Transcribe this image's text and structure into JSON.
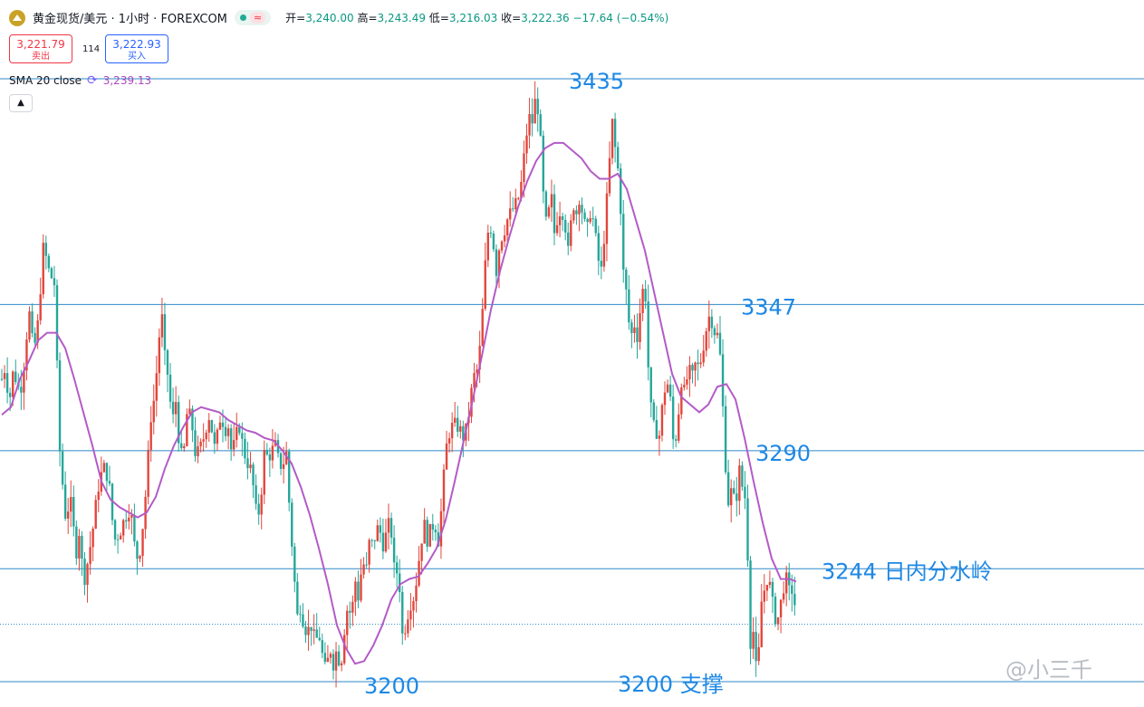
{
  "header": {
    "symbol_title": "黄金现货/美元 · 1小时 · FOREXCOM",
    "wave_badge": "≈",
    "ohlc": {
      "open_label": "开",
      "open": "3,240.00",
      "high_label": "高",
      "high": "3,243.49",
      "low_label": "低",
      "low": "3,216.03",
      "close_label": "收",
      "close": "3,222.36",
      "change": "−17.64 (−0.54%)"
    }
  },
  "trade": {
    "sell_price": "3,221.79",
    "sell_label": "卖出",
    "spread": "114",
    "buy_price": "3,222.93",
    "buy_label": "买入"
  },
  "indicator": {
    "label": "SMA 20 close",
    "value": "3,239.13"
  },
  "collapse_icon": "chevron-up-icon",
  "watermark": "@小三千",
  "colors": {
    "up": "#e2463c",
    "down": "#26a69a",
    "sma": "#b35bc7",
    "level_line": "#2f88c8",
    "level_text": "#1e88e5"
  },
  "chart_data": {
    "type": "candlestick",
    "timeframe": "1小时",
    "ylim": [
      3185,
      3445
    ],
    "levels": [
      {
        "value": 3435,
        "label": "3435"
      },
      {
        "value": 3347,
        "label": "3347"
      },
      {
        "value": 3290,
        "label": "3290"
      },
      {
        "value": 3244,
        "label": "3244 日内分水岭"
      },
      {
        "value": 3200,
        "label": "3200 支撑"
      }
    ],
    "extra_labels": [
      {
        "value": 3200,
        "label": "3200"
      }
    ],
    "current_price": 3222.36,
    "close_path": [
      [
        0,
        3318
      ],
      [
        4,
        3323
      ],
      [
        8,
        3308
      ],
      [
        12,
        3320
      ],
      [
        16,
        3318
      ],
      [
        20,
        3312
      ],
      [
        24,
        3322
      ],
      [
        30,
        3345
      ],
      [
        35,
        3328
      ],
      [
        40,
        3340
      ],
      [
        46,
        3370
      ],
      [
        52,
        3360
      ],
      [
        58,
        3355
      ],
      [
        64,
        3290
      ],
      [
        70,
        3265
      ],
      [
        76,
        3270
      ],
      [
        82,
        3250
      ],
      [
        86,
        3260
      ],
      [
        90,
        3238
      ],
      [
        95,
        3247
      ],
      [
        100,
        3258
      ],
      [
        106,
        3275
      ],
      [
        112,
        3284
      ],
      [
        118,
        3279
      ],
      [
        124,
        3255
      ],
      [
        130,
        3258
      ],
      [
        136,
        3264
      ],
      [
        142,
        3268
      ],
      [
        148,
        3248
      ],
      [
        152,
        3250
      ],
      [
        156,
        3262
      ],
      [
        160,
        3278
      ],
      [
        164,
        3302
      ],
      [
        168,
        3310
      ],
      [
        172,
        3325
      ],
      [
        176,
        3346
      ],
      [
        180,
        3326
      ],
      [
        184,
        3318
      ],
      [
        188,
        3300
      ],
      [
        192,
        3310
      ],
      [
        196,
        3292
      ],
      [
        200,
        3285
      ],
      [
        205,
        3307
      ],
      [
        210,
        3300
      ],
      [
        214,
        3288
      ],
      [
        218,
        3290
      ],
      [
        222,
        3294
      ],
      [
        226,
        3300
      ],
      [
        230,
        3305
      ],
      [
        234,
        3290
      ],
      [
        238,
        3296
      ],
      [
        242,
        3305
      ],
      [
        246,
        3298
      ],
      [
        250,
        3300
      ],
      [
        254,
        3288
      ],
      [
        258,
        3295
      ],
      [
        262,
        3300
      ],
      [
        266,
        3292
      ],
      [
        270,
        3286
      ],
      [
        274,
        3284
      ],
      [
        278,
        3275
      ],
      [
        282,
        3262
      ],
      [
        286,
        3272
      ],
      [
        290,
        3290
      ],
      [
        294,
        3287
      ],
      [
        298,
        3290
      ],
      [
        302,
        3292
      ],
      [
        306,
        3285
      ],
      [
        310,
        3284
      ],
      [
        314,
        3290
      ],
      [
        318,
        3265
      ],
      [
        322,
        3245
      ],
      [
        326,
        3225
      ],
      [
        330,
        3230
      ],
      [
        334,
        3221
      ],
      [
        338,
        3220
      ],
      [
        342,
        3222
      ],
      [
        346,
        3215
      ],
      [
        350,
        3219
      ],
      [
        354,
        3210
      ],
      [
        358,
        3203
      ],
      [
        362,
        3214
      ],
      [
        366,
        3207
      ],
      [
        370,
        3213
      ],
      [
        374,
        3205
      ],
      [
        378,
        3220
      ],
      [
        382,
        3230
      ],
      [
        386,
        3225
      ],
      [
        390,
        3240
      ],
      [
        394,
        3232
      ],
      [
        398,
        3248
      ],
      [
        402,
        3242
      ],
      [
        406,
        3255
      ],
      [
        410,
        3253
      ],
      [
        414,
        3260
      ],
      [
        418,
        3258
      ],
      [
        422,
        3252
      ],
      [
        426,
        3262
      ],
      [
        430,
        3258
      ],
      [
        434,
        3240
      ],
      [
        438,
        3245
      ],
      [
        442,
        3218
      ],
      [
        446,
        3222
      ],
      [
        450,
        3230
      ],
      [
        454,
        3232
      ],
      [
        458,
        3240
      ],
      [
        462,
        3252
      ],
      [
        466,
        3262
      ],
      [
        470,
        3255
      ],
      [
        474,
        3260
      ],
      [
        478,
        3262
      ],
      [
        482,
        3255
      ],
      [
        486,
        3270
      ],
      [
        490,
        3290
      ],
      [
        494,
        3297
      ],
      [
        498,
        3300
      ],
      [
        502,
        3300
      ],
      [
        506,
        3298
      ],
      [
        510,
        3295
      ],
      [
        514,
        3300
      ],
      [
        518,
        3312
      ],
      [
        522,
        3320
      ],
      [
        526,
        3322
      ],
      [
        530,
        3340
      ],
      [
        534,
        3364
      ],
      [
        538,
        3380
      ],
      [
        542,
        3373
      ],
      [
        546,
        3360
      ],
      [
        550,
        3372
      ],
      [
        554,
        3375
      ],
      [
        558,
        3380
      ],
      [
        562,
        3383
      ],
      [
        566,
        3385
      ],
      [
        570,
        3388
      ],
      [
        574,
        3395
      ],
      [
        578,
        3410
      ],
      [
        582,
        3420
      ],
      [
        586,
        3418
      ],
      [
        590,
        3430
      ],
      [
        594,
        3415
      ],
      [
        598,
        3388
      ],
      [
        602,
        3375
      ],
      [
        606,
        3392
      ],
      [
        610,
        3375
      ],
      [
        614,
        3382
      ],
      [
        618,
        3385
      ],
      [
        622,
        3378
      ],
      [
        626,
        3365
      ],
      [
        630,
        3388
      ],
      [
        634,
        3382
      ],
      [
        638,
        3390
      ],
      [
        642,
        3380
      ],
      [
        646,
        3375
      ],
      [
        650,
        3384
      ],
      [
        654,
        3378
      ],
      [
        658,
        3365
      ],
      [
        662,
        3360
      ],
      [
        666,
        3378
      ],
      [
        670,
        3398
      ],
      [
        674,
        3418
      ],
      [
        678,
        3405
      ],
      [
        682,
        3395
      ],
      [
        686,
        3360
      ],
      [
        690,
        3350
      ],
      [
        694,
        3333
      ],
      [
        698,
        3340
      ],
      [
        702,
        3334
      ],
      [
        706,
        3350
      ],
      [
        710,
        3356
      ],
      [
        714,
        3320
      ],
      [
        718,
        3300
      ],
      [
        722,
        3298
      ],
      [
        726,
        3296
      ],
      [
        730,
        3310
      ],
      [
        734,
        3318
      ],
      [
        738,
        3310
      ],
      [
        742,
        3290
      ],
      [
        746,
        3300
      ],
      [
        750,
        3318
      ],
      [
        754,
        3312
      ],
      [
        758,
        3322
      ],
      [
        762,
        3318
      ],
      [
        766,
        3324
      ],
      [
        770,
        3322
      ],
      [
        774,
        3330
      ],
      [
        778,
        3338
      ],
      [
        782,
        3344
      ],
      [
        786,
        3337
      ],
      [
        790,
        3335
      ],
      [
        794,
        3324
      ],
      [
        798,
        3290
      ],
      [
        802,
        3270
      ],
      [
        806,
        3275
      ],
      [
        810,
        3268
      ],
      [
        814,
        3283
      ],
      [
        818,
        3275
      ],
      [
        822,
        3270
      ],
      [
        826,
        3215
      ],
      [
        830,
        3220
      ],
      [
        834,
        3198
      ],
      [
        838,
        3230
      ],
      [
        842,
        3236
      ],
      [
        846,
        3242
      ],
      [
        850,
        3232
      ],
      [
        854,
        3225
      ],
      [
        858,
        3225
      ],
      [
        862,
        3236
      ],
      [
        866,
        3240
      ],
      [
        870,
        3234
      ],
      [
        874,
        3237
      ],
      [
        877,
        3222
      ]
    ],
    "sma20": [
      [
        0,
        3304
      ],
      [
        10,
        3307
      ],
      [
        20,
        3318
      ],
      [
        30,
        3325
      ],
      [
        40,
        3333
      ],
      [
        50,
        3336
      ],
      [
        60,
        3336
      ],
      [
        70,
        3330
      ],
      [
        80,
        3318
      ],
      [
        90,
        3305
      ],
      [
        100,
        3292
      ],
      [
        110,
        3278
      ],
      [
        120,
        3271
      ],
      [
        130,
        3268
      ],
      [
        140,
        3266
      ],
      [
        150,
        3264
      ],
      [
        160,
        3266
      ],
      [
        170,
        3272
      ],
      [
        180,
        3283
      ],
      [
        190,
        3292
      ],
      [
        200,
        3299
      ],
      [
        210,
        3305
      ],
      [
        220,
        3307
      ],
      [
        230,
        3306
      ],
      [
        240,
        3305
      ],
      [
        250,
        3302
      ],
      [
        260,
        3300
      ],
      [
        270,
        3298
      ],
      [
        280,
        3297
      ],
      [
        290,
        3295
      ],
      [
        300,
        3294
      ],
      [
        310,
        3290
      ],
      [
        320,
        3285
      ],
      [
        330,
        3276
      ],
      [
        340,
        3265
      ],
      [
        350,
        3252
      ],
      [
        360,
        3238
      ],
      [
        370,
        3222
      ],
      [
        380,
        3213
      ],
      [
        390,
        3207
      ],
      [
        400,
        3208
      ],
      [
        410,
        3214
      ],
      [
        420,
        3222
      ],
      [
        430,
        3232
      ],
      [
        440,
        3238
      ],
      [
        450,
        3240
      ],
      [
        460,
        3241
      ],
      [
        470,
        3246
      ],
      [
        480,
        3252
      ],
      [
        490,
        3263
      ],
      [
        500,
        3278
      ],
      [
        510,
        3294
      ],
      [
        520,
        3310
      ],
      [
        530,
        3327
      ],
      [
        540,
        3345
      ],
      [
        550,
        3360
      ],
      [
        560,
        3373
      ],
      [
        570,
        3385
      ],
      [
        580,
        3395
      ],
      [
        590,
        3403
      ],
      [
        600,
        3408
      ],
      [
        610,
        3410
      ],
      [
        620,
        3410
      ],
      [
        630,
        3407
      ],
      [
        640,
        3404
      ],
      [
        650,
        3399
      ],
      [
        660,
        3396
      ],
      [
        670,
        3396
      ],
      [
        680,
        3398
      ],
      [
        690,
        3392
      ],
      [
        700,
        3380
      ],
      [
        710,
        3368
      ],
      [
        720,
        3352
      ],
      [
        730,
        3336
      ],
      [
        740,
        3320
      ],
      [
        750,
        3311
      ],
      [
        760,
        3308
      ],
      [
        770,
        3305
      ],
      [
        780,
        3308
      ],
      [
        790,
        3315
      ],
      [
        800,
        3316
      ],
      [
        810,
        3310
      ],
      [
        820,
        3295
      ],
      [
        830,
        3278
      ],
      [
        840,
        3262
      ],
      [
        850,
        3248
      ],
      [
        860,
        3240
      ],
      [
        870,
        3240
      ],
      [
        877,
        3239
      ]
    ]
  }
}
